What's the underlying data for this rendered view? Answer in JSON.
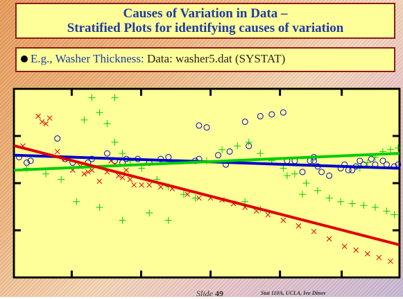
{
  "slide": {
    "title_line1": "Causes of Variation in Data –",
    "title_line2": "Stratified Plots for identifying causes of variation",
    "bullet_prefix": "E.g., Washer Thickness:",
    "bullet_rest": " Data: washer5.dat (SYSTAT)",
    "footer_slide_label": "Slide",
    "footer_slide_number": "49",
    "footer_credit": "Stat 110A, UCLA, Ivo Dinov"
  },
  "colors": {
    "blue": "#0000cc",
    "red": "#dd0000",
    "green": "#00cc00",
    "plot_bg": "#ffff99"
  },
  "chart_data": {
    "type": "scatter",
    "xlim": [
      0,
      100
    ],
    "ylim": [
      0,
      100
    ],
    "grid": false,
    "series": [
      {
        "marker": "circle",
        "color": "#0000cc",
        "points": [
          [
            1,
            64
          ],
          [
            3,
            61
          ],
          [
            4,
            62
          ],
          [
            11,
            74
          ],
          [
            13,
            63
          ],
          [
            15,
            61
          ],
          [
            19,
            61
          ],
          [
            20,
            63
          ],
          [
            24,
            66
          ],
          [
            26,
            62
          ],
          [
            28,
            61
          ],
          [
            29,
            63
          ],
          [
            32,
            63
          ],
          [
            35,
            61
          ],
          [
            38,
            63
          ],
          [
            40,
            64
          ],
          [
            47,
            62
          ],
          [
            48,
            63
          ],
          [
            48,
            81
          ],
          [
            50,
            80
          ],
          [
            53,
            65
          ],
          [
            55,
            60
          ],
          [
            56,
            67
          ],
          [
            60,
            83
          ],
          [
            61,
            70
          ],
          [
            64,
            86
          ],
          [
            67,
            87
          ],
          [
            70,
            88
          ],
          [
            71,
            62
          ],
          [
            73,
            62
          ],
          [
            75,
            56
          ],
          [
            77,
            62
          ],
          [
            78,
            64
          ],
          [
            78,
            62
          ],
          [
            79,
            59
          ],
          [
            80,
            56
          ],
          [
            82,
            54
          ],
          [
            85,
            58
          ],
          [
            86,
            60
          ],
          [
            87,
            57
          ],
          [
            88,
            57
          ],
          [
            89,
            59
          ],
          [
            90,
            62
          ],
          [
            91,
            60
          ],
          [
            93,
            63
          ],
          [
            94,
            60
          ],
          [
            96,
            62
          ],
          [
            97,
            60
          ],
          [
            99,
            59
          ],
          [
            100,
            60
          ]
        ]
      },
      {
        "marker": "x",
        "color": "#dd0000",
        "points": [
          [
            2,
            70
          ],
          [
            6,
            86
          ],
          [
            7,
            83
          ],
          [
            8,
            82
          ],
          [
            9,
            85
          ],
          [
            11,
            67
          ],
          [
            13,
            63
          ],
          [
            15,
            57
          ],
          [
            17,
            59
          ],
          [
            18,
            55
          ],
          [
            19,
            56
          ],
          [
            20,
            57
          ],
          [
            22,
            51
          ],
          [
            24,
            56
          ],
          [
            25,
            62
          ],
          [
            26,
            60
          ],
          [
            27,
            54
          ],
          [
            28,
            53
          ],
          [
            29,
            57
          ],
          [
            30,
            52
          ],
          [
            31,
            49
          ],
          [
            33,
            49
          ],
          [
            35,
            49
          ],
          [
            38,
            48
          ],
          [
            41,
            47
          ],
          [
            45,
            44
          ],
          [
            48,
            42
          ],
          [
            51,
            42
          ],
          [
            54,
            41
          ],
          [
            57,
            39
          ],
          [
            60,
            37
          ],
          [
            63,
            35
          ],
          [
            66,
            33
          ],
          [
            70,
            30
          ],
          [
            74,
            27
          ],
          [
            78,
            24
          ],
          [
            82,
            20
          ],
          [
            86,
            16
          ],
          [
            89,
            14
          ],
          [
            92,
            12
          ],
          [
            95,
            10
          ],
          [
            98,
            8
          ]
        ]
      },
      {
        "marker": "plus",
        "color": "#00cc00",
        "points": [
          [
            3,
            58
          ],
          [
            8,
            55
          ],
          [
            12,
            52
          ],
          [
            16,
            40
          ],
          [
            18,
            84
          ],
          [
            20,
            96
          ],
          [
            22,
            88
          ],
          [
            24,
            82
          ],
          [
            26,
            72
          ],
          [
            28,
            66
          ],
          [
            30,
            62
          ],
          [
            33,
            58
          ],
          [
            37,
            52
          ],
          [
            40,
            48
          ],
          [
            44,
            44
          ],
          [
            47,
            42
          ],
          [
            50,
            62
          ],
          [
            54,
            68
          ],
          [
            58,
            70
          ],
          [
            61,
            72
          ],
          [
            64,
            66
          ],
          [
            67,
            62
          ],
          [
            70,
            58
          ],
          [
            73,
            55
          ],
          [
            76,
            50
          ],
          [
            79,
            46
          ],
          [
            82,
            42
          ],
          [
            85,
            40
          ],
          [
            88,
            39
          ],
          [
            91,
            38
          ],
          [
            94,
            37
          ],
          [
            97,
            35
          ],
          [
            99,
            33
          ],
          [
            26,
            96
          ],
          [
            22,
            37
          ],
          [
            28,
            30
          ],
          [
            35,
            34
          ],
          [
            40,
            30
          ],
          [
            60,
            40
          ],
          [
            64,
            36
          ],
          [
            71,
            54
          ],
          [
            75,
            44
          ],
          [
            90,
            58
          ],
          [
            92,
            61
          ],
          [
            94,
            64
          ],
          [
            96,
            67
          ],
          [
            98,
            68
          ],
          [
            100,
            69
          ]
        ]
      }
    ],
    "fit_lines": [
      {
        "color": "#0000cc",
        "from": [
          0,
          65
        ],
        "to": [
          100,
          58
        ]
      },
      {
        "color": "#00cc00",
        "from": [
          0,
          57
        ],
        "to": [
          100,
          66
        ]
      },
      {
        "color": "#dd0000",
        "from": [
          0,
          70
        ],
        "to": [
          100,
          17
        ]
      }
    ]
  }
}
